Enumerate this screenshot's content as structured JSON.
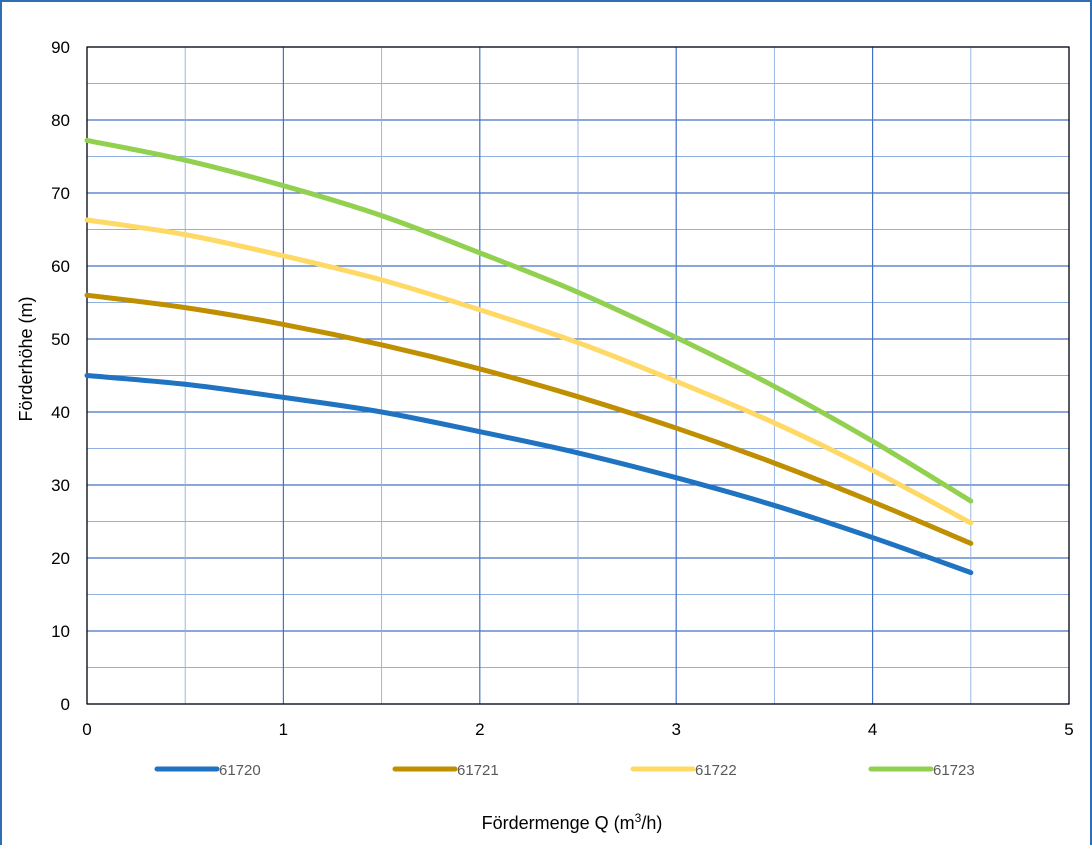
{
  "chart_data": {
    "type": "line",
    "xlabel_main": "Fördermenge Q (m",
    "xlabel_sup": "3",
    "xlabel_tail": "/h)",
    "ylabel": "Förderhöhe (m)",
    "xlim": [
      0,
      5
    ],
    "ylim": [
      0,
      90
    ],
    "x_ticks": [
      "0",
      "1",
      "2",
      "3",
      "4",
      "5"
    ],
    "y_ticks": [
      "0",
      "10",
      "20",
      "30",
      "40",
      "50",
      "60",
      "70",
      "80",
      "90"
    ],
    "grid": true,
    "legend_position": "bottom",
    "series": [
      {
        "name": "61720",
        "color": "#1f73c0",
        "x": [
          0,
          0.5,
          1,
          1.5,
          2,
          2.5,
          3,
          3.5,
          4,
          4.5
        ],
        "y": [
          45,
          43.8,
          42,
          40,
          37.3,
          34.4,
          31,
          27.2,
          22.8,
          18
        ]
      },
      {
        "name": "61721",
        "color": "#bf8f00",
        "x": [
          0,
          0.5,
          1,
          1.5,
          2,
          2.5,
          3,
          3.5,
          4,
          4.5
        ],
        "y": [
          56,
          54.3,
          52,
          49.2,
          45.9,
          42.1,
          37.8,
          33,
          27.7,
          22
        ]
      },
      {
        "name": "61722",
        "color": "#ffd966",
        "x": [
          0,
          0.5,
          1,
          1.5,
          2,
          2.5,
          3,
          3.5,
          4,
          4.5
        ],
        "y": [
          66.3,
          64.3,
          61.4,
          58.1,
          54,
          49.5,
          44.2,
          38.5,
          32,
          24.8
        ]
      },
      {
        "name": "61723",
        "color": "#92d050",
        "x": [
          0,
          0.5,
          1,
          1.5,
          2,
          2.5,
          3,
          3.5,
          4,
          4.5
        ],
        "y": [
          77.2,
          74.5,
          71,
          66.9,
          61.8,
          56.4,
          50.2,
          43.5,
          36,
          27.8
        ]
      }
    ]
  }
}
